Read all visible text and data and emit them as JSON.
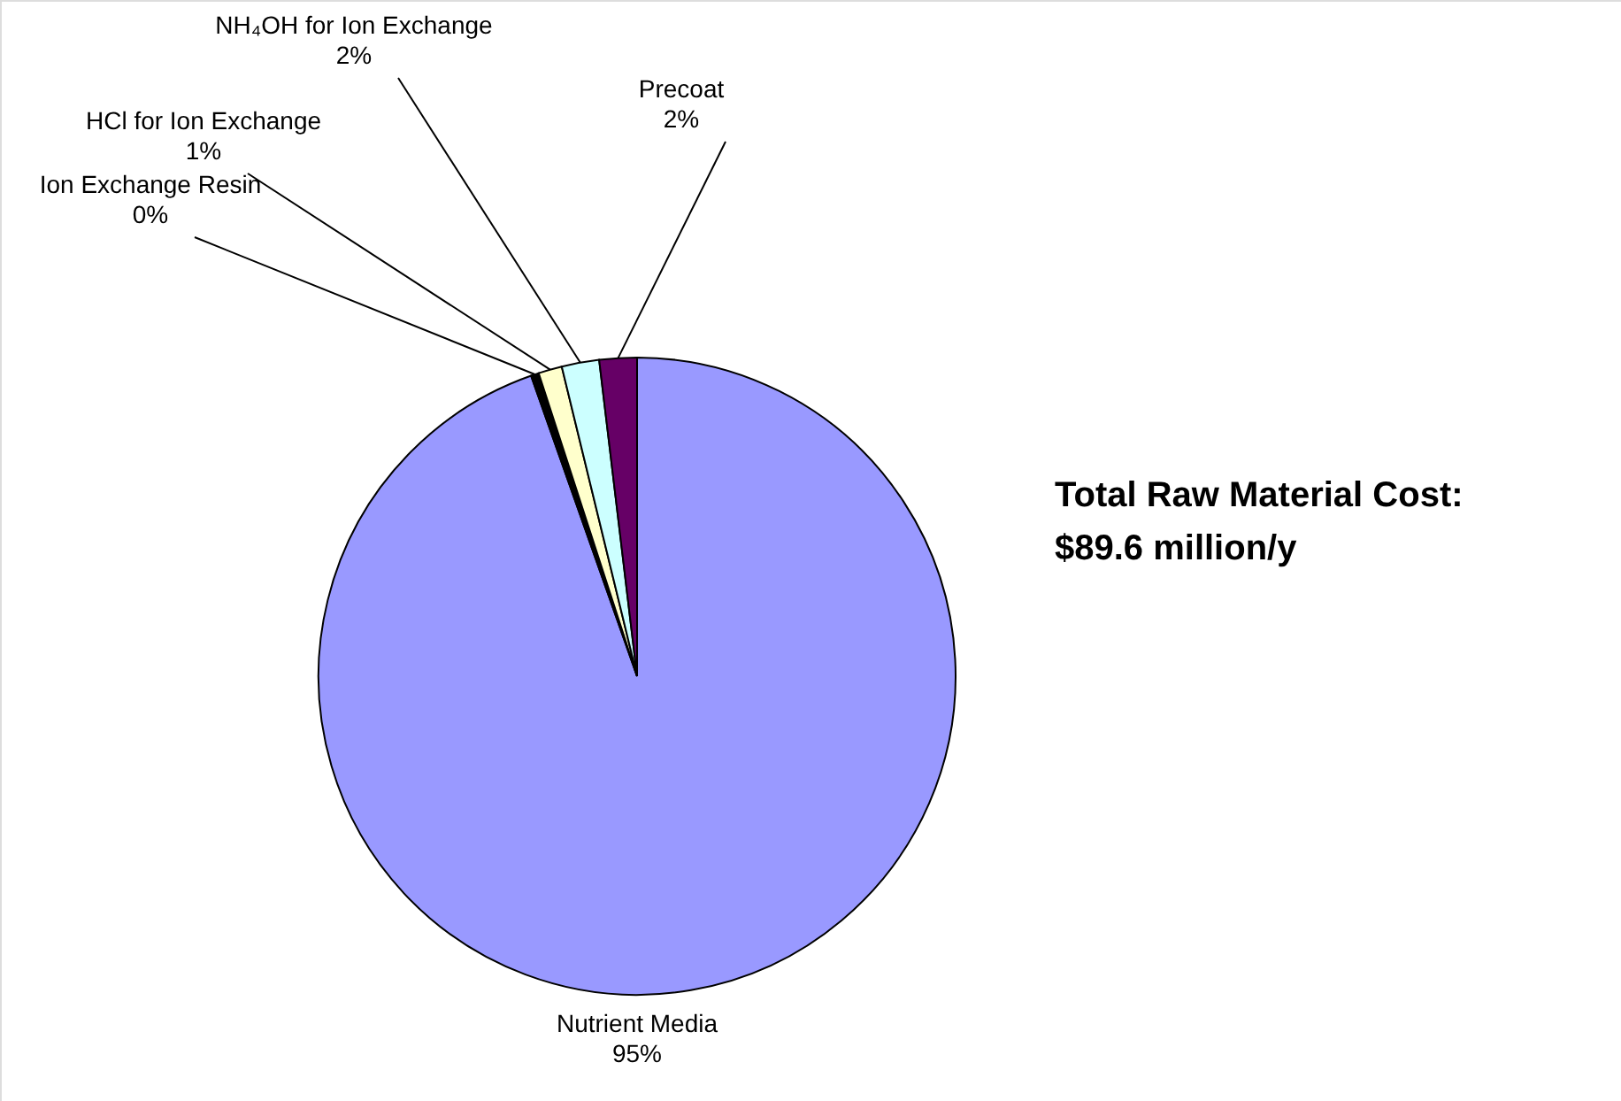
{
  "chart_data": {
    "type": "pie",
    "categories": [
      "Nutrient Media",
      "Ion Exchange Resin",
      "HCl for Ion Exchange",
      "NH₄OH for Ion Exchange",
      "Precoat"
    ],
    "values": [
      94.6,
      0.4,
      1.2,
      1.9,
      1.9
    ],
    "value_labels": [
      "95%",
      "0%",
      "1%",
      "2%",
      "2%"
    ],
    "colors": [
      "#9999ff",
      "#000000",
      "#ffffcc",
      "#ccffff",
      "#660066"
    ],
    "annotations": [
      "Total Raw Material Cost:",
      "$89.6 million/y"
    ]
  }
}
